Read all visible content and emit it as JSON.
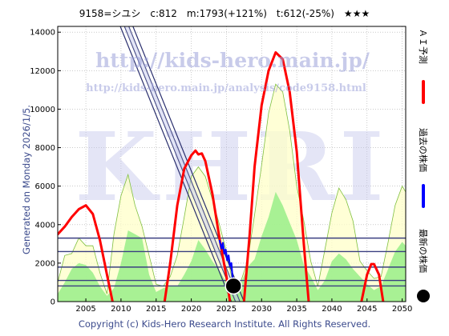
{
  "header": {
    "title": "9158=シユシ　c:812　m:1793(+121%)　t:612(-25%)　★★★"
  },
  "side_text": "Generated on Monday 2026/1/5.",
  "copyright": "Copyright (c) Kids-Hero Research Institute. All Rights Reserved.",
  "watermark": {
    "url_main": "http://kids-hero.main.jp/",
    "url_sub": "http://kids-hero.main.jp/analysis/code9158.html",
    "logo": "KHRI"
  },
  "legend": [
    {
      "label": "ＡＩ予測",
      "color": "#ff0000",
      "type": "line"
    },
    {
      "label": "過去の株価",
      "color": "#0000ff",
      "type": "line"
    },
    {
      "label": "最新の株価",
      "color": "#000000",
      "type": "dot"
    }
  ],
  "colors": {
    "prediction": "#ff0000",
    "past_price": "#0000ff",
    "latest_price": "#000000",
    "channel": "#2a2f6e",
    "band_outer_fill": "#ffffc8",
    "band_outer_line": "#7fbf3f",
    "band_inner_fill": "#99ee88",
    "hline": "#3a3f80",
    "grid": "#aaaaaa"
  },
  "chart_data": {
    "type": "line",
    "xlim": [
      2001,
      2050.5
    ],
    "ylim": [
      0,
      14300
    ],
    "x_ticks": [
      2005,
      2010,
      2015,
      2020,
      2025,
      2030,
      2035,
      2040,
      2045,
      2050
    ],
    "y_ticks": [
      0,
      2000,
      4000,
      6000,
      8000,
      10000,
      12000,
      14000
    ],
    "grid": true,
    "legend_position": "right",
    "latest_point": {
      "x": 2026.0,
      "y": 812
    },
    "horizontal_levels": [
      3300,
      2600,
      1793,
      1100,
      812
    ],
    "trend_channel": {
      "center": [
        [
          2010.8,
          14300
        ],
        [
          2026.6,
          0
        ]
      ],
      "offsets": [
        -0.9,
        -0.3,
        0.3,
        0.9
      ]
    },
    "past_price": [
      [
        2024.0,
        3200
      ],
      [
        2024.3,
        2750
      ],
      [
        2024.5,
        3050
      ],
      [
        2024.7,
        2500
      ],
      [
        2024.9,
        2700
      ],
      [
        2025.1,
        2150
      ],
      [
        2025.3,
        2400
      ],
      [
        2025.5,
        1850
      ],
      [
        2025.7,
        2000
      ],
      [
        2025.85,
        1300
      ],
      [
        2026.0,
        812
      ]
    ],
    "ai_prediction": [
      [
        [
          2001,
          3500
        ],
        [
          2002,
          3900
        ],
        [
          2003,
          4400
        ],
        [
          2004,
          4800
        ],
        [
          2005,
          5000
        ],
        [
          2006,
          4550
        ],
        [
          2007,
          3200
        ],
        [
          2008,
          1400
        ],
        [
          2008.8,
          0
        ]
      ],
      [
        [
          2016.2,
          0
        ],
        [
          2017,
          2000
        ],
        [
          2018,
          5000
        ],
        [
          2019,
          6900
        ],
        [
          2020,
          7600
        ],
        [
          2020.6,
          7850
        ],
        [
          2021,
          7650
        ],
        [
          2021.5,
          7700
        ],
        [
          2022,
          7300
        ],
        [
          2023,
          5600
        ],
        [
          2024,
          3300
        ],
        [
          2025,
          1300
        ],
        [
          2025.5,
          0
        ]
      ],
      [
        [
          2027.5,
          0
        ],
        [
          2028.3,
          3500
        ],
        [
          2029,
          7000
        ],
        [
          2030,
          10200
        ],
        [
          2031,
          12000
        ],
        [
          2032,
          12950
        ],
        [
          2033,
          12600
        ],
        [
          2034,
          10900
        ],
        [
          2035,
          7800
        ],
        [
          2036,
          3000
        ],
        [
          2036.7,
          0
        ]
      ],
      [
        [
          2044.2,
          0
        ],
        [
          2045,
          1400
        ],
        [
          2045.6,
          1950
        ],
        [
          2046,
          1950
        ],
        [
          2046.7,
          1400
        ],
        [
          2047.3,
          0
        ]
      ]
    ],
    "band_outer": [
      [
        2001,
        1000
      ],
      [
        2002,
        2400
      ],
      [
        2003,
        2500
      ],
      [
        2004,
        3300
      ],
      [
        2005,
        2900
      ],
      [
        2006,
        2900
      ],
      [
        2007,
        1500
      ],
      [
        2008,
        400
      ],
      [
        2009,
        3500
      ],
      [
        2010,
        5500
      ],
      [
        2011,
        6600
      ],
      [
        2012,
        5000
      ],
      [
        2013,
        3900
      ],
      [
        2014,
        2400
      ],
      [
        2015,
        900
      ],
      [
        2016,
        800
      ],
      [
        2017,
        1300
      ],
      [
        2018,
        2400
      ],
      [
        2019,
        4400
      ],
      [
        2020,
        6500
      ],
      [
        2021,
        7000
      ],
      [
        2022,
        6500
      ],
      [
        2023,
        5300
      ],
      [
        2024,
        4000
      ],
      [
        2025,
        2600
      ],
      [
        2026,
        800
      ],
      [
        2027,
        1000
      ],
      [
        2028,
        2100
      ],
      [
        2029,
        4500
      ],
      [
        2030,
        7100
      ],
      [
        2031,
        9800
      ],
      [
        2032,
        11300
      ],
      [
        2033,
        10900
      ],
      [
        2034,
        8900
      ],
      [
        2035,
        6000
      ],
      [
        2036,
        4200
      ],
      [
        2037,
        2100
      ],
      [
        2038,
        800
      ],
      [
        2039,
        2700
      ],
      [
        2040,
        4600
      ],
      [
        2041,
        5900
      ],
      [
        2042,
        5300
      ],
      [
        2043,
        4200
      ],
      [
        2044,
        2100
      ],
      [
        2045,
        1600
      ],
      [
        2046,
        1200
      ],
      [
        2047,
        1300
      ],
      [
        2048,
        3100
      ],
      [
        2049,
        5000
      ],
      [
        2050,
        6000
      ],
      [
        2050.5,
        5700
      ]
    ],
    "band_inner": [
      [
        2001,
        400
      ],
      [
        2002,
        1000
      ],
      [
        2003,
        1700
      ],
      [
        2004,
        2000
      ],
      [
        2005,
        1900
      ],
      [
        2006,
        1500
      ],
      [
        2007,
        800
      ],
      [
        2008,
        300
      ],
      [
        2009,
        700
      ],
      [
        2010,
        2000
      ],
      [
        2011,
        3700
      ],
      [
        2012,
        3500
      ],
      [
        2013,
        3300
      ],
      [
        2014,
        1400
      ],
      [
        2015,
        500
      ],
      [
        2016,
        700
      ],
      [
        2017,
        800
      ],
      [
        2018,
        800
      ],
      [
        2019,
        1400
      ],
      [
        2020,
        2100
      ],
      [
        2021,
        3200
      ],
      [
        2022,
        2700
      ],
      [
        2023,
        2100
      ],
      [
        2024,
        1600
      ],
      [
        2025,
        1000
      ],
      [
        2026,
        500
      ],
      [
        2027,
        900
      ],
      [
        2028,
        1800
      ],
      [
        2029,
        2200
      ],
      [
        2030,
        3400
      ],
      [
        2031,
        4400
      ],
      [
        2032,
        5700
      ],
      [
        2033,
        5000
      ],
      [
        2034,
        4100
      ],
      [
        2035,
        3200
      ],
      [
        2036,
        1900
      ],
      [
        2037,
        1300
      ],
      [
        2038,
        600
      ],
      [
        2039,
        1100
      ],
      [
        2040,
        2100
      ],
      [
        2041,
        2500
      ],
      [
        2042,
        2200
      ],
      [
        2043,
        1700
      ],
      [
        2044,
        1300
      ],
      [
        2045,
        900
      ],
      [
        2046,
        600
      ],
      [
        2047,
        800
      ],
      [
        2048,
        1700
      ],
      [
        2049,
        2600
      ],
      [
        2050,
        3100
      ],
      [
        2050.5,
        2900
      ]
    ]
  }
}
